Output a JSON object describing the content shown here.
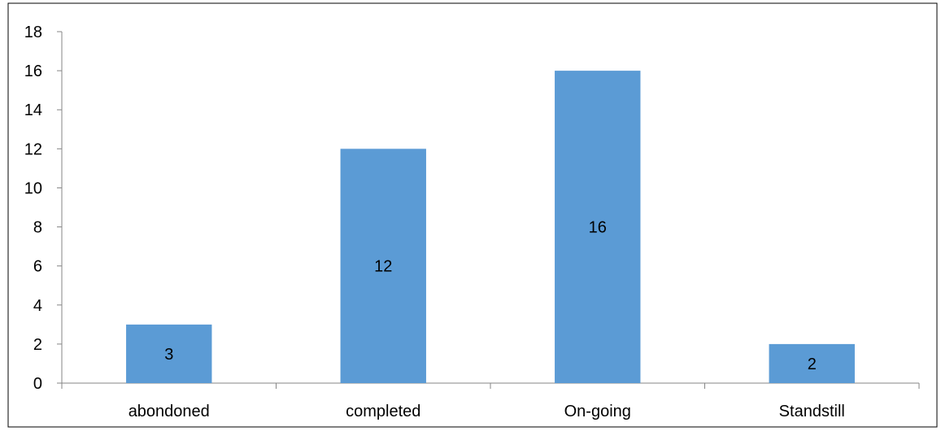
{
  "chart_data": {
    "type": "bar",
    "title": "",
    "xlabel": "",
    "ylabel": "",
    "categories": [
      "abondoned",
      "completed",
      "On-going",
      "Standstill"
    ],
    "values": [
      3,
      12,
      16,
      2
    ],
    "data_labels": [
      "3",
      "12",
      "16",
      "2"
    ],
    "ylim": [
      0,
      18
    ],
    "yticks": [
      0,
      2,
      4,
      6,
      8,
      10,
      12,
      14,
      16,
      18
    ],
    "grid": false,
    "legend": "none",
    "bar_color": "#5B9BD5"
  }
}
